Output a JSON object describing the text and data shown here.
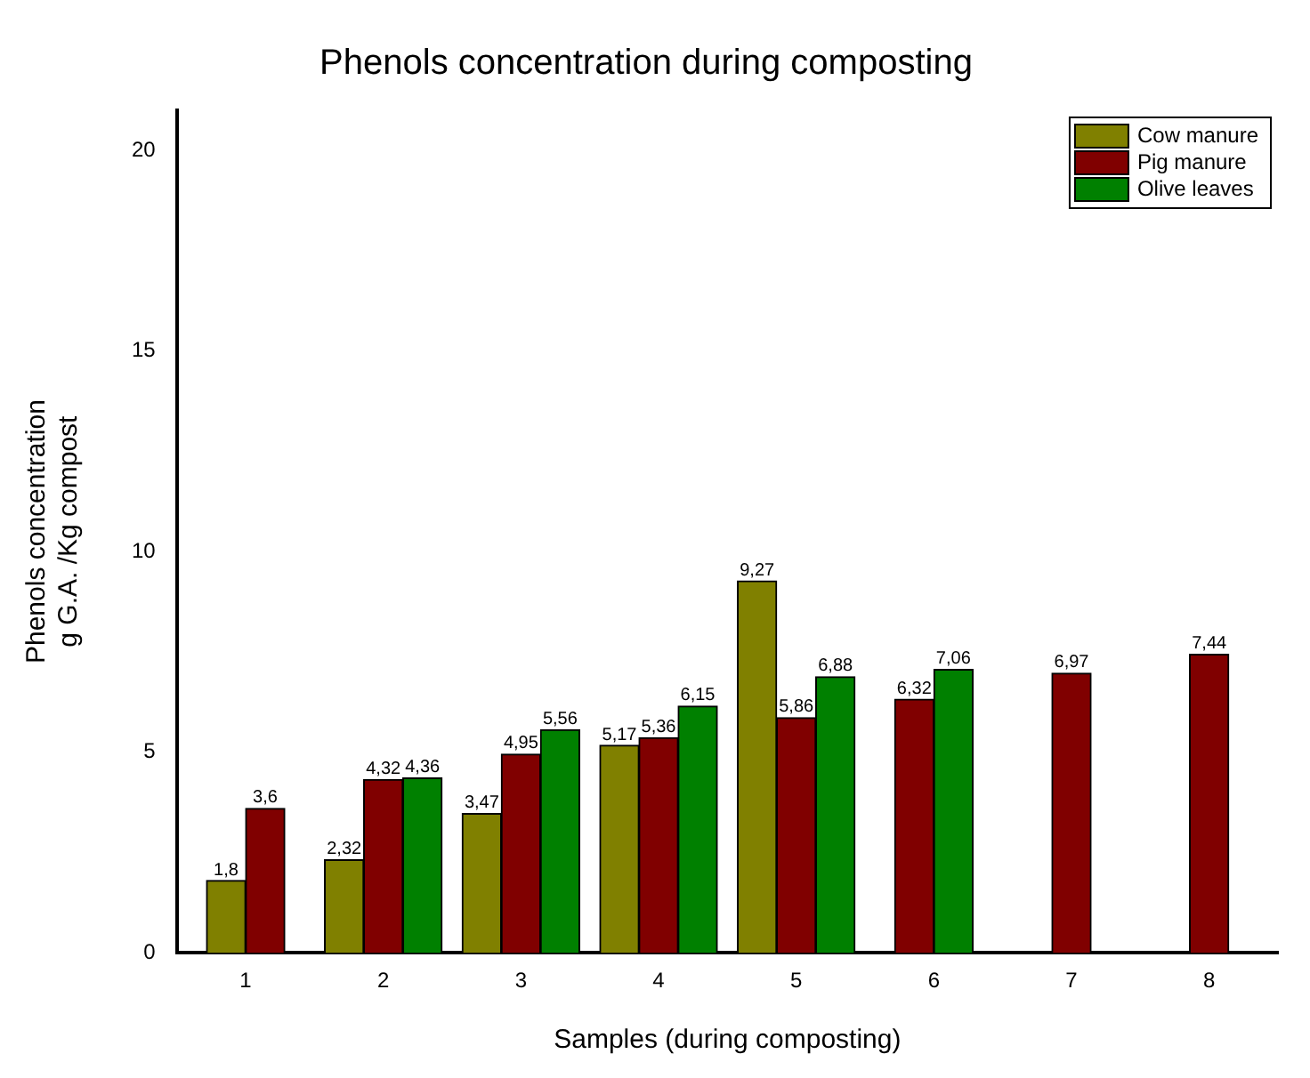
{
  "chart_data": {
    "type": "bar",
    "title": "Phenols concentration during composting",
    "xlabel": "Samples (during composting)",
    "ylabel": "Phenols concentration\ng G.A. /Kg compost",
    "categories": [
      "1",
      "2",
      "3",
      "4",
      "5",
      "6",
      "7",
      "8"
    ],
    "series": [
      {
        "name": "Cow manure",
        "color": "#808000",
        "values": [
          1.8,
          2.32,
          3.47,
          5.17,
          9.27,
          null,
          null,
          null
        ],
        "value_labels": [
          "1,8",
          "2,32",
          "3,47",
          "5,17",
          "9,27",
          null,
          null,
          null
        ]
      },
      {
        "name": "Pig manure",
        "color": "#800000",
        "values": [
          3.6,
          4.32,
          4.95,
          5.36,
          5.86,
          6.32,
          6.97,
          7.44
        ],
        "value_labels": [
          "3,6",
          "4,32",
          "4,95",
          "5,36",
          "5,86",
          "6,32",
          "6,97",
          "7,44"
        ]
      },
      {
        "name": "Olive leaves",
        "color": "#008000",
        "values": [
          null,
          4.36,
          5.56,
          6.15,
          6.88,
          7.06,
          null,
          null
        ],
        "value_labels": [
          null,
          "4,36",
          "5,56",
          "6,15",
          "6,88",
          "7,06",
          null,
          null
        ]
      }
    ],
    "ylim": [
      0,
      21
    ],
    "yticks": [
      0,
      5,
      10,
      15,
      20
    ],
    "grid": false,
    "legend": "top right"
  }
}
